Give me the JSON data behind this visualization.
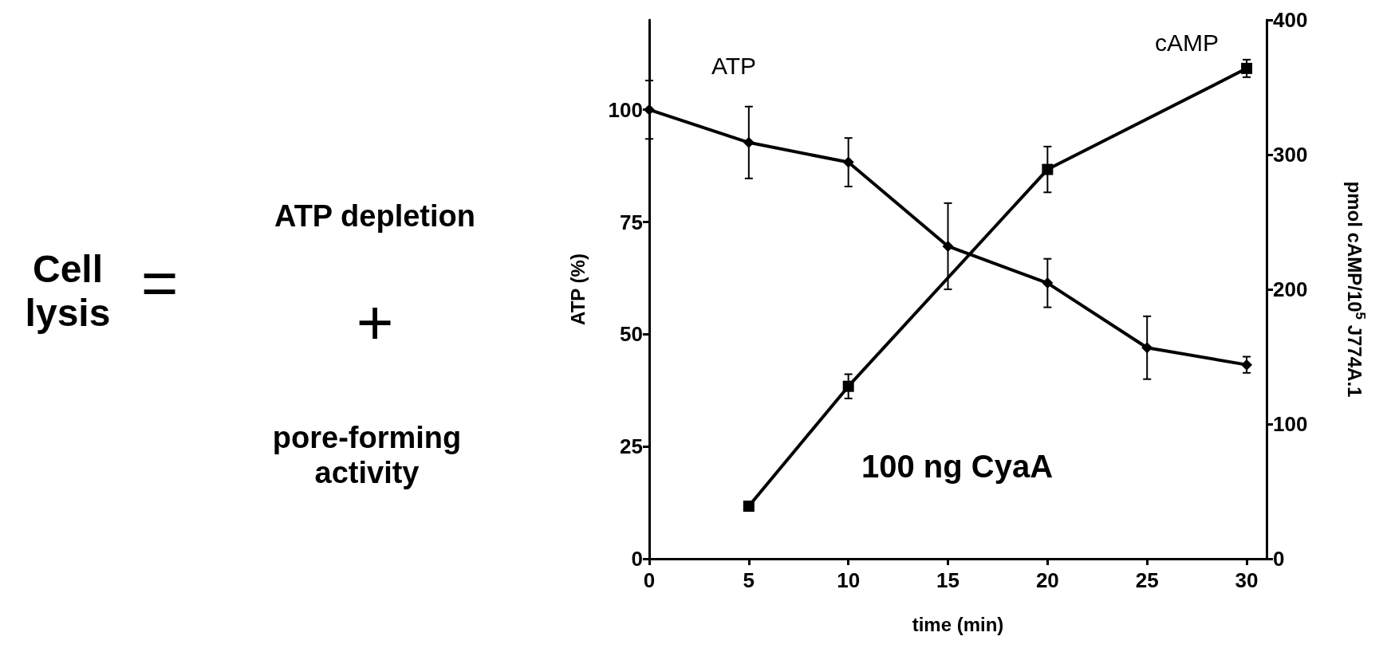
{
  "chart_data": [
    {
      "type": "other",
      "annotations": [
        "Cell lysis",
        "=",
        "ATP depletion",
        "+",
        "pore-forming activity"
      ]
    },
    {
      "type": "line",
      "xlabel": "time (min)",
      "ylabel": "ATP (%)",
      "y2label": "pmol cAMP/10$^{5}$ J774A.1",
      "x": [
        0,
        5,
        10,
        15,
        20,
        25,
        30
      ],
      "series": [
        {
          "name": "ATP",
          "color": "#000000",
          "marker": "diamond",
          "values": [
            100,
            92.7,
            88.3,
            69.6,
            61.4,
            47,
            43.2
          ],
          "errors": [
            6.5,
            8,
            5.4,
            9.6,
            5.4,
            7,
            1.8
          ]
        },
        {
          "name": "cAMP",
          "color": "#000000",
          "marker": "square",
          "axis": "y2",
          "x": [
            5,
            10,
            20,
            30
          ],
          "values": [
            39,
            128,
            289,
            364
          ],
          "errors": [
            null,
            9,
            17,
            6.5
          ]
        }
      ],
      "xlim": [
        0,
        31
      ],
      "xticks": [
        0,
        5,
        10,
        15,
        20,
        25,
        30
      ],
      "ylim": [
        0,
        120
      ],
      "yticks": [
        0,
        25,
        50,
        75,
        100
      ],
      "y2lim": [
        0,
        400
      ],
      "y2ticks": [
        0,
        100,
        200,
        300,
        400
      ],
      "annotations": [
        "100 ng CyaA"
      ],
      "grid": false,
      "legend": false,
      "line_style": "solid"
    }
  ]
}
